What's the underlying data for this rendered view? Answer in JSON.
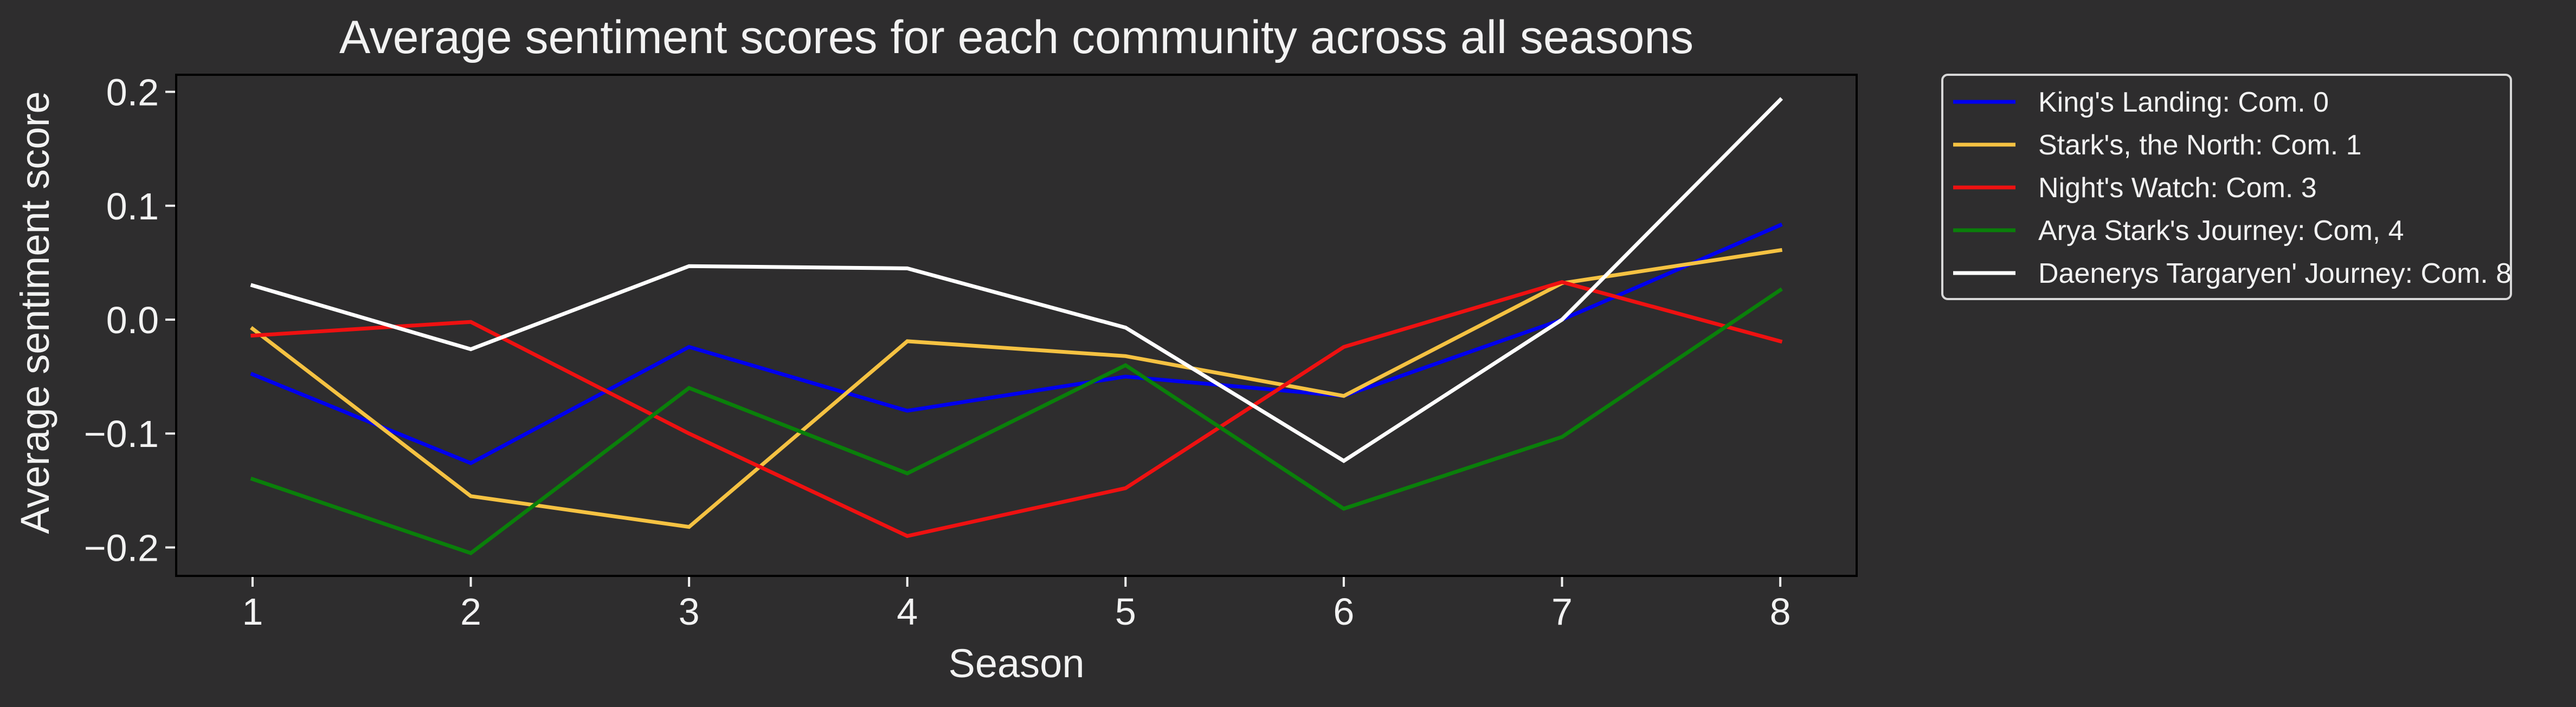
{
  "chart_data": {
    "type": "line",
    "title": "Average sentiment scores for each community across all seasons",
    "xlabel": "Season",
    "ylabel": "Average sentiment score",
    "x": [
      1,
      2,
      3,
      4,
      5,
      6,
      7,
      8
    ],
    "xticks": [
      "1",
      "2",
      "3",
      "4",
      "5",
      "6",
      "7",
      "8"
    ],
    "yticks": [
      0.2,
      0.1,
      0.0,
      -0.1,
      -0.2
    ],
    "ytick_labels": [
      "0.2",
      "0.1",
      "0.0",
      "−0.1",
      "−0.2"
    ],
    "xlim": [
      0.65,
      8.35
    ],
    "ylim": [
      -0.225,
      0.215
    ],
    "grid": false,
    "legend_position": "outside-upper-right",
    "series": [
      {
        "name": "King's Landing: Com. 0",
        "color": "#0000ee",
        "values": [
          -0.048,
          -0.126,
          -0.024,
          -0.08,
          -0.05,
          -0.067,
          0.0,
          0.083
        ]
      },
      {
        "name": "Stark's, the North: Com. 1",
        "color": "#f5c242",
        "values": [
          -0.008,
          -0.155,
          -0.182,
          -0.019,
          -0.032,
          -0.067,
          0.032,
          0.061
        ]
      },
      {
        "name": "Night's Watch: Com. 3",
        "color": "#ee1111",
        "values": [
          -0.014,
          -0.002,
          -0.1,
          -0.19,
          -0.148,
          -0.024,
          0.033,
          -0.019
        ]
      },
      {
        "name": "Arya Stark's Journey: Com, 4",
        "color": "#0a7f0a",
        "values": [
          -0.14,
          -0.205,
          -0.06,
          -0.135,
          -0.04,
          -0.166,
          -0.103,
          0.026
        ]
      },
      {
        "name": "Daenerys Targaryen' Journey: Com. 8",
        "color": "#ffffff",
        "values": [
          0.03,
          -0.026,
          0.047,
          0.045,
          -0.007,
          -0.124,
          0.0,
          0.193
        ]
      }
    ]
  },
  "colors": {
    "background": "#2e2d2e",
    "axes_frame": "#000000",
    "text": "#f2f2f2",
    "legend_border": "#d8d8d8"
  }
}
